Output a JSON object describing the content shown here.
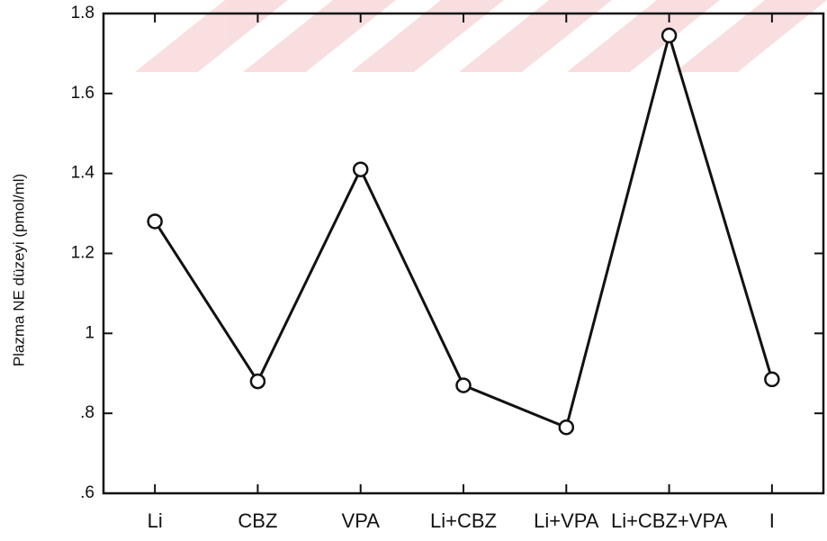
{
  "chart_data": {
    "type": "line",
    "y_label": "Plazma NE düzeyi (pmol/ml)",
    "categories": [
      "Li",
      "CBZ",
      "VPA",
      "Li+CBZ",
      "Li+VPA",
      "Li+CBZ+VPA",
      "I"
    ],
    "series": [
      {
        "name": "Plazma NE",
        "color": "#111111",
        "values": [
          1.28,
          0.88,
          1.41,
          0.87,
          0.765,
          1.745,
          0.885
        ]
      }
    ],
    "ylim": [
      0.6,
      1.8
    ],
    "yticks": [
      {
        "value": 0.6,
        "label": ".6"
      },
      {
        "value": 0.8,
        "label": ".8"
      },
      1,
      1.2,
      1.4,
      1.6,
      1.8
    ]
  }
}
